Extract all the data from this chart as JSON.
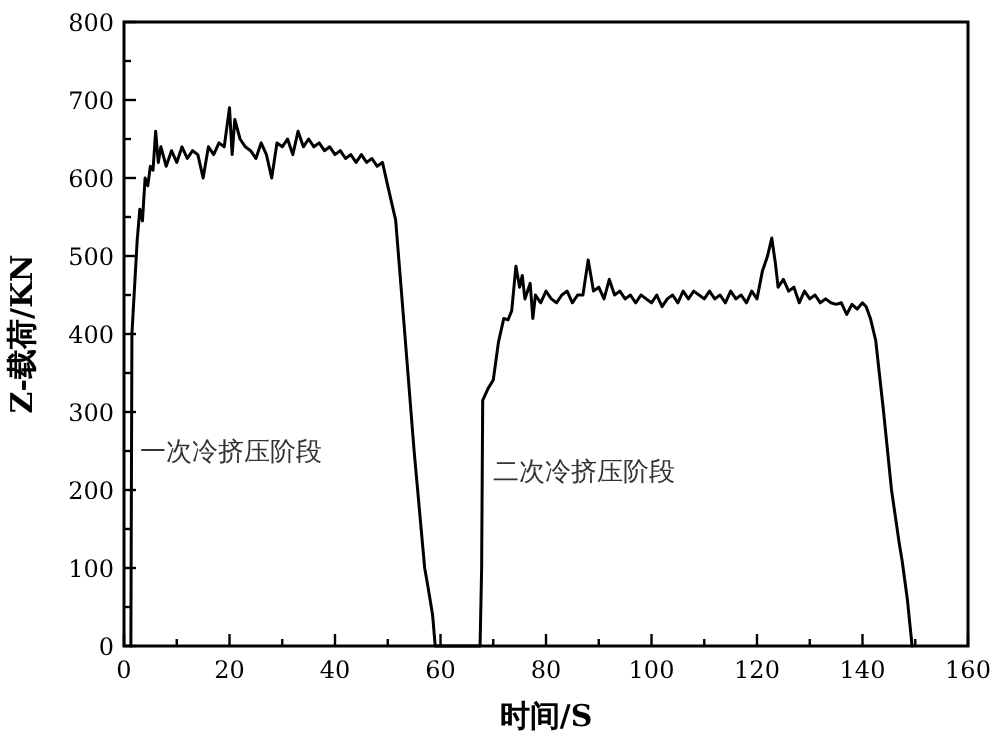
{
  "chart_data": {
    "type": "line",
    "xlabel": "时间/S",
    "ylabel": "Z-载荷/KN",
    "xlim": [
      0,
      160
    ],
    "ylim": [
      0,
      800
    ],
    "xticks": [
      0,
      {
        "value": 10,
        "label": null
      },
      20,
      {
        "value": 30,
        "label": null
      },
      40,
      {
        "value": 50,
        "label": null
      },
      60,
      {
        "value": 70,
        "label": null
      },
      80,
      {
        "value": 90,
        "label": null
      },
      100,
      {
        "value": 110,
        "label": null
      },
      120,
      {
        "value": 130,
        "label": null
      },
      140,
      {
        "value": 150,
        "label": null
      },
      160
    ],
    "yticks": [
      0,
      {
        "value": 50,
        "label": null
      },
      100,
      {
        "value": 150,
        "label": null
      },
      200,
      {
        "value": 250,
        "label": null
      },
      300,
      {
        "value": 350,
        "label": null
      },
      400,
      {
        "value": 450,
        "label": null
      },
      500,
      {
        "value": 550,
        "label": null
      },
      600,
      {
        "value": 650,
        "label": null
      },
      700,
      {
        "value": 750,
        "label": null
      },
      800
    ],
    "grid": false,
    "line_style": "solid",
    "annotations": [
      {
        "text": "一次冷挤压阶段",
        "x": 3,
        "y": 238
      },
      {
        "text": "二次冷挤压阶段",
        "x": 70,
        "y": 213
      }
    ],
    "series": [
      {
        "color": "#000000",
        "x": [
          1.3,
          1.5,
          2.5,
          3,
          3.5,
          4,
          4.5,
          5,
          5.5,
          6,
          6.5,
          7,
          8,
          9,
          10,
          11,
          12,
          13,
          14,
          15,
          16,
          17,
          18,
          19,
          20,
          20.5,
          21,
          22,
          23,
          24,
          25,
          26,
          27,
          28,
          29,
          30,
          31,
          32,
          33,
          34,
          35,
          36,
          37,
          38,
          39,
          40,
          41,
          42,
          43,
          44,
          45,
          46,
          47,
          48,
          49,
          50,
          51.5,
          53,
          55,
          57,
          57.6,
          58.5,
          59,
          60,
          67.3,
          67.5,
          67.8,
          68,
          69,
          70,
          71,
          72,
          72.8,
          73.5,
          74.3,
          75,
          75.5,
          76,
          77,
          77.5,
          78,
          79,
          80,
          81,
          82,
          83,
          84,
          85,
          86,
          87,
          88,
          89,
          90,
          91,
          92,
          93,
          94,
          95,
          96,
          97,
          98,
          99,
          100,
          101,
          102,
          103,
          104,
          105,
          106,
          107,
          108,
          109,
          110,
          111,
          112,
          113,
          114,
          115,
          116,
          117,
          118,
          119,
          120,
          121,
          122,
          122.8,
          123.5,
          124,
          125,
          126,
          127,
          128,
          129,
          130,
          131,
          132,
          133,
          134,
          135,
          136,
          137,
          138,
          139,
          140,
          140.7,
          141.5,
          142.5,
          144,
          145.5,
          147,
          147.5,
          148.5,
          149.4
        ],
        "values": [
          0,
          400,
          520,
          560,
          545,
          600,
          590,
          615,
          610,
          660,
          620,
          640,
          615,
          635,
          620,
          640,
          625,
          635,
          630,
          600,
          640,
          630,
          645,
          640,
          690,
          630,
          675,
          650,
          640,
          635,
          625,
          645,
          630,
          600,
          645,
          640,
          650,
          630,
          660,
          640,
          650,
          640,
          645,
          635,
          640,
          630,
          635,
          625,
          630,
          620,
          630,
          620,
          625,
          615,
          620,
          590,
          546,
          420,
          250,
          100,
          77,
          40,
          0,
          0,
          0,
          0,
          100,
          315,
          330,
          341,
          390,
          420,
          418,
          430,
          487,
          460,
          475,
          445,
          465,
          420,
          450,
          440,
          455,
          445,
          440,
          450,
          455,
          440,
          450,
          450,
          495,
          455,
          460,
          445,
          470,
          450,
          455,
          445,
          450,
          440,
          450,
          445,
          440,
          450,
          435,
          445,
          450,
          440,
          455,
          445,
          455,
          450,
          445,
          455,
          445,
          450,
          440,
          455,
          445,
          450,
          440,
          455,
          445,
          480,
          500,
          523,
          490,
          460,
          470,
          455,
          460,
          440,
          455,
          445,
          450,
          440,
          445,
          440,
          438,
          440,
          425,
          438,
          432,
          440,
          435,
          420,
          392,
          300,
          200,
          130,
          110,
          60,
          0
        ]
      }
    ]
  }
}
